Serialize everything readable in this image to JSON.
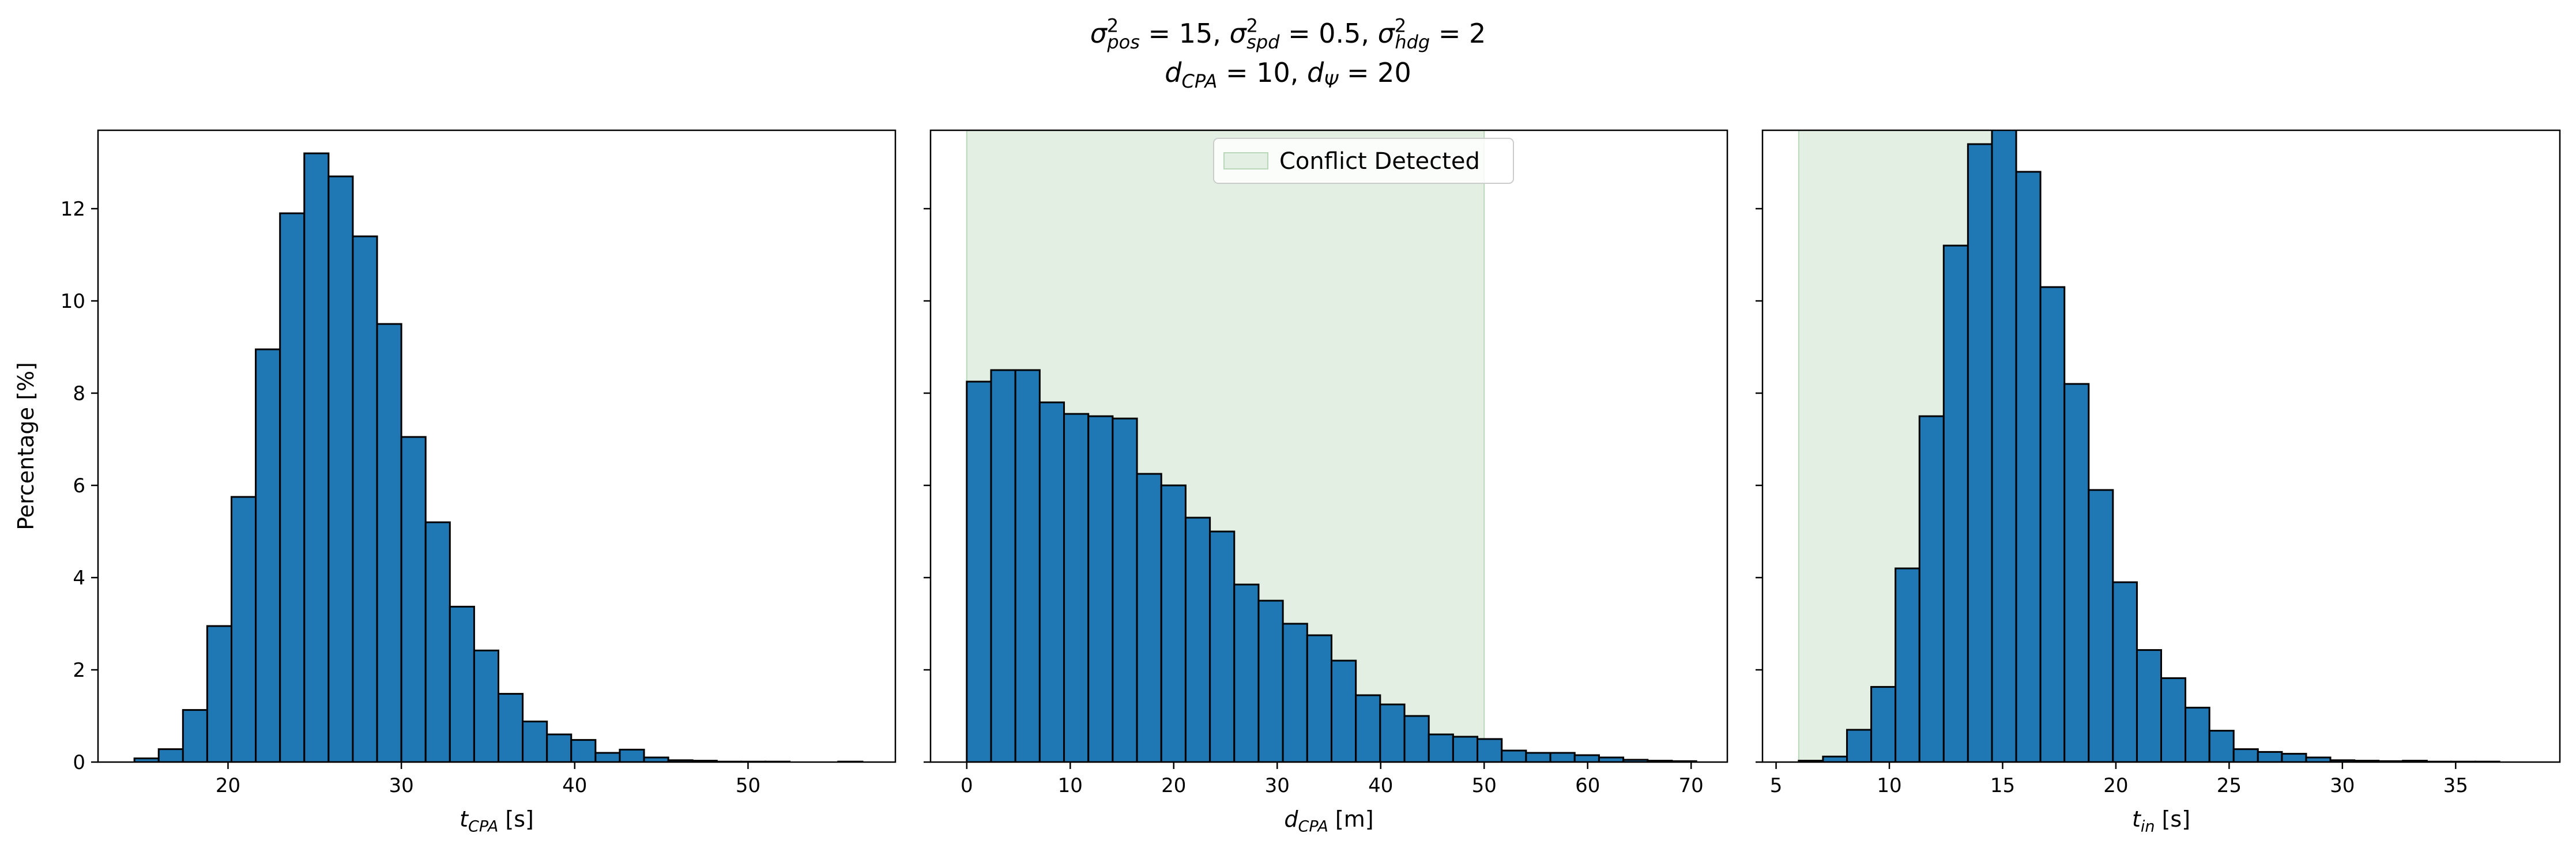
{
  "figure": {
    "title_line1": "σ²pos = 15, σ²spd = 0.5, σ²hdg = 2",
    "title_line2": "dCPA = 10, dΨ = 20",
    "title_line1_parts": [
      {
        "t": "σ"
      },
      {
        "t": "2",
        "s": "sup"
      },
      {
        "t": "pos",
        "s": "sub"
      },
      {
        "t": " = 15, "
      },
      {
        "t": "σ"
      },
      {
        "t": "2",
        "s": "sup"
      },
      {
        "t": "spd",
        "s": "sub"
      },
      {
        "t": " = 0.5, "
      },
      {
        "t": "σ"
      },
      {
        "t": "2",
        "s": "sup"
      },
      {
        "t": "hdg",
        "s": "sub"
      },
      {
        "t": " = 2"
      }
    ],
    "title_line2_parts": [
      {
        "t": "d"
      },
      {
        "t": "CPA",
        "s": "sub"
      },
      {
        "t": " = 10, "
      },
      {
        "t": "d"
      },
      {
        "t": "Ψ",
        "s": "sub"
      },
      {
        "t": " = 20"
      }
    ]
  },
  "colors": {
    "bar_fill": "#1f77b4",
    "bar_edge": "#000000",
    "conflict_fill": "#e3efe3",
    "conflict_edge": "#b9d8b9"
  },
  "chart_data": [
    {
      "type": "bar",
      "histogram": true,
      "xlabel": "tCPA [s]",
      "xlabel_parts": [
        {
          "t": "t"
        },
        {
          "t": "CPA",
          "s": "sub"
        },
        {
          "t": " [s]"
        }
      ],
      "ylabel": "Percentage [%]",
      "xlim": [
        12.5,
        58.5
      ],
      "ylim": [
        0,
        13.7
      ],
      "xticks": [
        20,
        30,
        40,
        50
      ],
      "yticks": [
        0,
        2,
        4,
        6,
        8,
        10,
        12
      ],
      "show_ytick_labels": true,
      "grid": false,
      "bins": {
        "edges": [
          14.6,
          16.0,
          17.4,
          18.8,
          20.2,
          21.6,
          23.0,
          24.4,
          25.8,
          27.2,
          28.6,
          30.0,
          31.4,
          32.8,
          34.2,
          35.6,
          37.0,
          38.4,
          39.8,
          41.2,
          42.6,
          44.0,
          45.4,
          46.8,
          48.2,
          49.6,
          51.0,
          52.4,
          53.8,
          55.2,
          56.6
        ],
        "values": [
          0.08,
          0.28,
          1.13,
          2.95,
          5.75,
          8.95,
          11.9,
          13.2,
          12.7,
          11.4,
          9.5,
          7.05,
          5.2,
          3.37,
          2.42,
          1.48,
          0.88,
          0.6,
          0.48,
          0.2,
          0.27,
          0.1,
          0.04,
          0.03,
          0.01,
          0.01,
          0.01,
          0.0,
          0.0,
          0.01
        ]
      }
    },
    {
      "type": "bar",
      "histogram": true,
      "xlabel": "dCPA [m]",
      "xlabel_parts": [
        {
          "t": "d"
        },
        {
          "t": "CPA",
          "s": "sub"
        },
        {
          "t": " [m]"
        }
      ],
      "ylabel": "",
      "xlim": [
        -3.5,
        73.5
      ],
      "ylim": [
        0,
        13.7
      ],
      "xticks": [
        0,
        10,
        20,
        30,
        40,
        50,
        60,
        70
      ],
      "yticks": [
        0,
        2,
        4,
        6,
        8,
        10,
        12
      ],
      "show_ytick_labels": false,
      "grid": false,
      "shaded_region": {
        "x0": 0,
        "x1": 50,
        "label": "Conflict Detected"
      },
      "legend": {
        "entries": [
          "Conflict Detected"
        ],
        "position": "upper center"
      },
      "bins": {
        "edges": [
          0.0,
          2.35,
          4.7,
          7.05,
          9.4,
          11.75,
          14.1,
          16.45,
          18.8,
          21.15,
          23.5,
          25.85,
          28.2,
          30.55,
          32.9,
          35.25,
          37.6,
          39.95,
          42.3,
          44.65,
          47.0,
          49.35,
          51.7,
          54.05,
          56.4,
          58.75,
          61.1,
          63.45,
          65.8,
          68.15,
          70.5
        ],
        "values": [
          8.25,
          8.5,
          8.5,
          7.8,
          7.55,
          7.5,
          7.45,
          6.25,
          6.0,
          5.3,
          5.0,
          3.85,
          3.5,
          3.0,
          2.75,
          2.2,
          1.45,
          1.25,
          1.0,
          0.6,
          0.55,
          0.5,
          0.25,
          0.2,
          0.2,
          0.15,
          0.1,
          0.05,
          0.03,
          0.02
        ]
      }
    },
    {
      "type": "bar",
      "histogram": true,
      "xlabel": "tin [s]",
      "xlabel_parts": [
        {
          "t": "t"
        },
        {
          "t": "in",
          "s": "sub"
        },
        {
          "t": " [s]"
        }
      ],
      "ylabel": "",
      "xlim": [
        4.4,
        39.6
      ],
      "ylim": [
        0,
        13.7
      ],
      "xticks": [
        5,
        10,
        15,
        20,
        25,
        30,
        35
      ],
      "yticks": [
        0,
        2,
        4,
        6,
        8,
        10,
        12
      ],
      "show_ytick_labels": false,
      "grid": false,
      "shaded_region": {
        "x0": 6,
        "x1": 15.5
      },
      "bins": {
        "edges": [
          6.0,
          7.07,
          8.13,
          9.2,
          10.27,
          11.33,
          12.4,
          13.47,
          14.53,
          15.6,
          16.67,
          17.73,
          18.8,
          19.87,
          20.93,
          22.0,
          23.07,
          24.13,
          25.2,
          26.27,
          27.33,
          28.4,
          29.47,
          30.53,
          31.6,
          32.67,
          33.73,
          34.8,
          35.87,
          36.93,
          38.0
        ],
        "values": [
          0.03,
          0.12,
          0.7,
          1.63,
          4.2,
          7.5,
          11.2,
          13.4,
          13.95,
          12.8,
          10.3,
          8.2,
          5.9,
          3.9,
          2.43,
          1.82,
          1.18,
          0.68,
          0.28,
          0.22,
          0.18,
          0.1,
          0.04,
          0.03,
          0.02,
          0.03,
          0.01,
          0.01,
          0.01,
          0.0
        ]
      }
    }
  ]
}
